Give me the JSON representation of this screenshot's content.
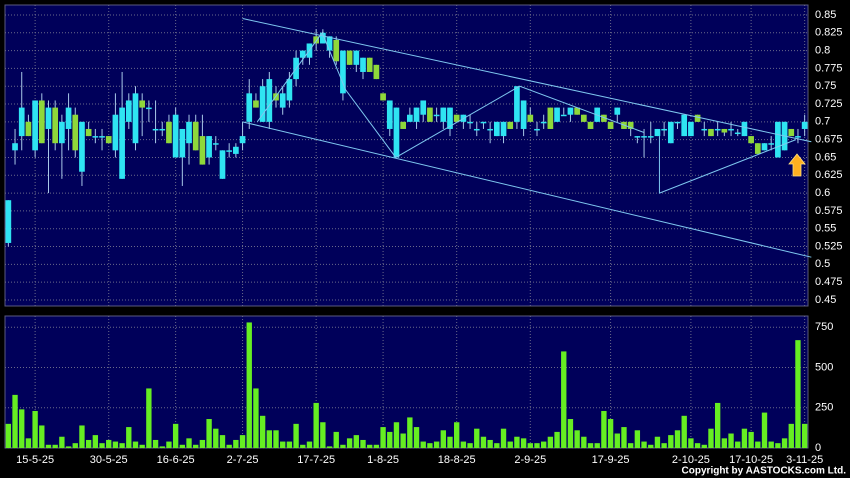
{
  "chart_data": {
    "type": "candlestick",
    "categories": [
      null,
      null,
      null,
      null,
      "15-5-25",
      null,
      null,
      null,
      null,
      null,
      null,
      null,
      null,
      null,
      null,
      "30-5-25",
      null,
      null,
      null,
      null,
      null,
      null,
      null,
      null,
      null,
      "16-6-25",
      null,
      null,
      null,
      null,
      null,
      null,
      null,
      null,
      null,
      "2-7-25",
      null,
      null,
      null,
      null,
      null,
      null,
      null,
      null,
      null,
      null,
      "17-7-25",
      null,
      null,
      null,
      null,
      null,
      null,
      null,
      null,
      null,
      "1-8-25",
      null,
      null,
      null,
      null,
      null,
      null,
      null,
      null,
      null,
      null,
      "18-8-25",
      null,
      null,
      null,
      null,
      null,
      null,
      null,
      null,
      null,
      null,
      "2-9-25",
      null,
      null,
      null,
      null,
      null,
      null,
      null,
      null,
      null,
      null,
      null,
      "17-9-25",
      null,
      null,
      null,
      null,
      null,
      null,
      null,
      null,
      null,
      null,
      null,
      "2-10-25",
      null,
      null,
      null,
      null,
      null,
      null,
      null,
      null,
      "17-10-25",
      null,
      null,
      null,
      null,
      null,
      null,
      null,
      "3-11-25"
    ],
    "open": [
      0.53,
      0.66,
      0.68,
      0.7,
      0.66,
      0.73,
      0.69,
      0.72,
      0.67,
      0.69,
      0.71,
      0.63,
      0.69,
      0.68,
      0.68,
      0.68,
      0.66,
      0.62,
      0.7,
      0.67,
      0.73,
      0.72,
      0.69,
      0.69,
      0.7,
      0.65,
      0.65,
      0.67,
      0.7,
      0.68,
      0.65,
      0.67,
      0.62,
      0.66,
      0.655,
      0.67,
      0.7,
      0.73,
      0.7,
      0.7,
      0.74,
      0.72,
      0.73,
      0.76,
      0.79,
      0.79,
      0.82,
      0.81,
      0.8,
      0.815,
      0.74,
      0.8,
      0.78,
      0.77,
      0.79,
      0.78,
      0.74,
      0.69,
      0.65,
      0.7,
      0.7,
      0.7,
      0.71,
      0.72,
      0.71,
      0.7,
      0.69,
      0.71,
      0.7,
      0.7,
      0.69,
      0.7,
      0.69,
      0.68,
      0.68,
      0.7,
      0.7,
      0.69,
      0.71,
      0.69,
      0.7,
      0.72,
      0.7,
      0.71,
      0.71,
      0.72,
      0.71,
      0.7,
      0.7,
      0.71,
      0.7,
      0.71,
      0.7,
      0.7,
      0.68,
      0.68,
      0.68,
      0.68,
      0.69,
      0.67,
      0.7,
      0.68,
      0.68,
      0.71,
      0.69,
      0.69,
      0.69,
      0.69,
      0.69,
      0.685,
      0.68,
      0.68,
      0.67,
      0.66,
      0.67,
      0.65,
      0.66,
      0.69,
      0.68,
      0.69
    ],
    "high": [
      0.59,
      0.69,
      0.77,
      0.71,
      0.73,
      0.74,
      0.73,
      0.73,
      0.71,
      0.74,
      0.72,
      0.7,
      0.7,
      0.69,
      0.69,
      0.68,
      0.74,
      0.77,
      0.74,
      0.75,
      0.74,
      0.73,
      0.73,
      0.7,
      0.71,
      0.72,
      0.69,
      0.71,
      0.71,
      0.71,
      0.68,
      0.68,
      0.66,
      0.67,
      0.67,
      0.7,
      0.76,
      0.74,
      0.76,
      0.77,
      0.75,
      0.75,
      0.77,
      0.8,
      0.8,
      0.81,
      0.83,
      0.83,
      0.82,
      0.82,
      0.8,
      0.8,
      0.8,
      0.79,
      0.79,
      0.78,
      0.74,
      0.73,
      0.72,
      0.7,
      0.72,
      0.72,
      0.73,
      0.72,
      0.72,
      0.72,
      0.72,
      0.71,
      0.71,
      0.71,
      0.7,
      0.7,
      0.7,
      0.7,
      0.7,
      0.7,
      0.75,
      0.73,
      0.72,
      0.7,
      0.71,
      0.72,
      0.72,
      0.72,
      0.72,
      0.72,
      0.71,
      0.7,
      0.72,
      0.71,
      0.7,
      0.72,
      0.7,
      0.7,
      0.68,
      0.69,
      0.7,
      0.69,
      0.7,
      0.7,
      0.7,
      0.71,
      0.7,
      0.71,
      0.7,
      0.69,
      0.7,
      0.69,
      0.7,
      0.69,
      0.7,
      0.68,
      0.67,
      0.67,
      0.68,
      0.7,
      0.7,
      0.69,
      0.69,
      0.71
    ],
    "low": [
      0.525,
      0.64,
      0.66,
      0.68,
      0.65,
      0.67,
      0.6,
      0.66,
      0.62,
      0.66,
      0.65,
      0.61,
      0.68,
      0.67,
      0.66,
      0.67,
      0.65,
      0.62,
      0.69,
      0.66,
      0.68,
      0.7,
      0.67,
      0.68,
      0.67,
      0.65,
      0.61,
      0.64,
      0.66,
      0.64,
      0.64,
      0.66,
      0.62,
      0.65,
      0.65,
      0.66,
      0.69,
      0.72,
      0.7,
      0.69,
      0.72,
      0.71,
      0.72,
      0.75,
      0.78,
      0.78,
      0.8,
      0.81,
      0.79,
      0.78,
      0.73,
      0.78,
      0.77,
      0.76,
      0.77,
      0.76,
      0.73,
      0.68,
      0.65,
      0.69,
      0.7,
      0.69,
      0.7,
      0.7,
      0.7,
      0.69,
      0.68,
      0.7,
      0.69,
      0.69,
      0.68,
      0.69,
      0.67,
      0.68,
      0.67,
      0.69,
      0.69,
      0.68,
      0.7,
      0.68,
      0.69,
      0.69,
      0.7,
      0.71,
      0.7,
      0.71,
      0.7,
      0.69,
      0.7,
      0.7,
      0.69,
      0.7,
      0.69,
      0.68,
      0.67,
      0.65,
      0.67,
      0.68,
      0.68,
      0.67,
      0.69,
      0.68,
      0.68,
      0.7,
      0.68,
      0.68,
      0.68,
      0.68,
      0.68,
      0.68,
      0.68,
      0.67,
      0.655,
      0.66,
      0.66,
      0.65,
      0.66,
      0.68,
      0.67,
      0.68
    ],
    "close": [
      0.59,
      0.67,
      0.72,
      0.68,
      0.73,
      0.67,
      0.72,
      0.67,
      0.7,
      0.72,
      0.66,
      0.7,
      0.68,
      0.68,
      0.68,
      0.67,
      0.71,
      0.72,
      0.73,
      0.74,
      0.72,
      0.72,
      0.69,
      0.69,
      0.67,
      0.71,
      0.69,
      0.7,
      0.66,
      0.64,
      0.68,
      0.67,
      0.66,
      0.66,
      0.665,
      0.68,
      0.74,
      0.72,
      0.75,
      0.76,
      0.73,
      0.74,
      0.76,
      0.79,
      0.8,
      0.81,
      0.81,
      0.825,
      0.82,
      0.785,
      0.8,
      0.78,
      0.8,
      0.79,
      0.77,
      0.76,
      0.73,
      0.73,
      0.72,
      0.69,
      0.71,
      0.72,
      0.73,
      0.7,
      0.71,
      0.72,
      0.72,
      0.7,
      0.71,
      0.7,
      0.69,
      0.7,
      0.69,
      0.7,
      0.7,
      0.69,
      0.75,
      0.73,
      0.7,
      0.69,
      0.7,
      0.69,
      0.72,
      0.71,
      0.72,
      0.71,
      0.7,
      0.69,
      0.72,
      0.7,
      0.69,
      0.72,
      0.69,
      0.69,
      0.68,
      0.68,
      0.68,
      0.69,
      0.69,
      0.7,
      0.7,
      0.71,
      0.7,
      0.7,
      0.69,
      0.68,
      0.69,
      0.685,
      0.69,
      0.685,
      0.7,
      0.67,
      0.655,
      0.67,
      0.67,
      0.7,
      0.7,
      0.68,
      0.68,
      0.7
    ],
    "up_color": "#2fe4f2",
    "down_color": "#8fd83a",
    "ylim": [
      0.4415,
      0.864
    ],
    "yticks": [
      0.45,
      0.475,
      0.5,
      0.525,
      0.55,
      0.575,
      0.6,
      0.625,
      0.65,
      0.675,
      0.7,
      0.725,
      0.75,
      0.775,
      0.8,
      0.825,
      0.85
    ],
    "grid": true,
    "trendlines": [
      {
        "x": [
          35,
          120
        ],
        "y": [
          0.845,
          0.672
        ]
      },
      {
        "x": [
          35,
          120
        ],
        "y": [
          0.7,
          0.51
        ]
      },
      {
        "x": [
          37.2,
          46.9,
          50.4,
          57.9,
          76.4,
          95
        ],
        "y": [
          0.7,
          0.825,
          0.745,
          0.65,
          0.75,
          0.685
        ]
      },
      {
        "x": [
          97.3,
          97.3,
          117.7
        ],
        "y": [
          0.68,
          0.6,
          0.675
        ]
      }
    ],
    "trendline_color": "#7fc8f0",
    "volume": {
      "values": [
        150,
        330,
        240,
        60,
        230,
        140,
        20,
        20,
        70,
        10,
        30,
        140,
        50,
        80,
        30,
        50,
        40,
        30,
        130,
        40,
        20,
        370,
        50,
        10,
        40,
        150,
        20,
        60,
        20,
        50,
        180,
        120,
        80,
        20,
        50,
        80,
        780,
        370,
        200,
        110,
        110,
        40,
        40,
        150,
        20,
        40,
        280,
        160,
        10,
        100,
        20,
        60,
        80,
        50,
        20,
        20,
        130,
        100,
        160,
        90,
        190,
        130,
        40,
        30,
        40,
        110,
        70,
        160,
        40,
        30,
        120,
        70,
        50,
        30,
        120,
        40,
        70,
        60,
        30,
        30,
        40,
        70,
        100,
        600,
        180,
        110,
        70,
        30,
        30,
        230,
        180,
        90,
        130,
        30,
        110,
        40,
        20,
        70,
        30,
        80,
        110,
        200,
        60,
        30,
        20,
        120,
        280,
        60,
        90,
        40,
        120,
        100,
        40,
        220,
        40,
        30,
        60,
        150,
        670,
        150
      ],
      "color": "#66ee22",
      "ylim": [
        0,
        820
      ],
      "yticks": [
        0,
        250,
        500,
        750
      ]
    },
    "credit": "Copyright by AASTOCKS.com Ltd."
  }
}
